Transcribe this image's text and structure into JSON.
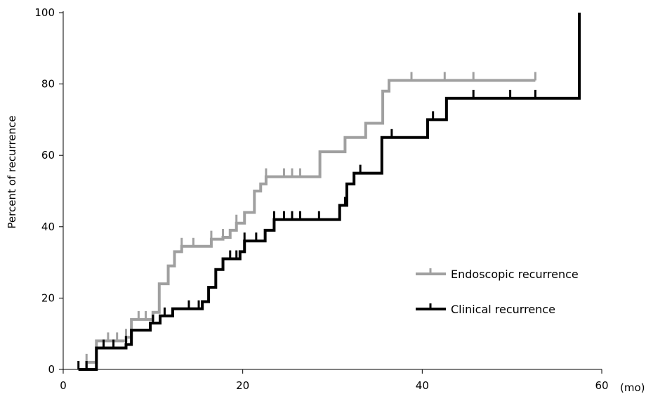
{
  "chart_data": {
    "type": "line",
    "step": true,
    "xlabel": "(mo)",
    "ylabel": "Percent of recurrence",
    "xlim": [
      0,
      60
    ],
    "ylim": [
      0,
      100
    ],
    "xticks": [
      0,
      20,
      40,
      60
    ],
    "yticks": [
      0,
      20,
      40,
      60,
      80,
      100
    ],
    "grid": false,
    "legend_position": "lower-right",
    "series": [
      {
        "name": "Endoscopic recurrence",
        "color": "#a0a0a0",
        "points": [
          [
            1.7,
            0
          ],
          [
            2.6,
            2
          ],
          [
            3.7,
            8
          ],
          [
            5,
            8
          ],
          [
            6,
            8
          ],
          [
            7,
            9
          ],
          [
            7.6,
            14
          ],
          [
            8.4,
            14
          ],
          [
            9.2,
            14
          ],
          [
            10,
            16
          ],
          [
            10.7,
            24
          ],
          [
            11.7,
            29
          ],
          [
            12.4,
            33
          ],
          [
            13.2,
            34.5
          ],
          [
            14.5,
            34.5
          ],
          [
            16.5,
            36.5
          ],
          [
            17.8,
            37
          ],
          [
            18.6,
            39
          ],
          [
            19.3,
            41
          ],
          [
            20.2,
            44
          ],
          [
            21.3,
            50
          ],
          [
            22,
            52
          ],
          [
            22.6,
            54
          ],
          [
            25.5,
            54
          ],
          [
            26,
            54
          ],
          [
            28.6,
            61
          ],
          [
            31.4,
            65
          ],
          [
            33.7,
            69
          ],
          [
            35.6,
            78
          ],
          [
            36.3,
            81
          ],
          [
            52.6,
            81
          ]
        ],
        "censored": [
          2.6,
          5,
          6,
          7,
          8.4,
          9.2,
          13.2,
          14.5,
          16.5,
          17.8,
          19.3,
          22.6,
          24.6,
          25.5,
          26.4,
          38.8,
          42.5,
          45.7,
          52.6
        ]
      },
      {
        "name": "Clinical recurrence",
        "color": "#000000",
        "points": [
          [
            1.7,
            0
          ],
          [
            3.7,
            6
          ],
          [
            7,
            7
          ],
          [
            7.6,
            11
          ],
          [
            9,
            11
          ],
          [
            9.7,
            13
          ],
          [
            10.8,
            15
          ],
          [
            12.2,
            17
          ],
          [
            14.5,
            17
          ],
          [
            15.5,
            19
          ],
          [
            16.2,
            23
          ],
          [
            17,
            28
          ],
          [
            17.8,
            31
          ],
          [
            19.7,
            33
          ],
          [
            20.2,
            36
          ],
          [
            21.7,
            36
          ],
          [
            22.5,
            39
          ],
          [
            23.5,
            42
          ],
          [
            28.5,
            42
          ],
          [
            30.8,
            46
          ],
          [
            31.6,
            52
          ],
          [
            32.4,
            55
          ],
          [
            35.5,
            65
          ],
          [
            36.8,
            65
          ],
          [
            40.6,
            70
          ],
          [
            42.7,
            76
          ],
          [
            57.5,
            76
          ],
          [
            57.5,
            100
          ]
        ],
        "censored": [
          1.7,
          2.6,
          4.5,
          5.6,
          7,
          10,
          11.3,
          14,
          15.1,
          18.6,
          19.3,
          20.2,
          21.5,
          23.5,
          24.6,
          25.5,
          26.4,
          28.5,
          31.4,
          33.1,
          36.6,
          41.2,
          45.7,
          49.8,
          52.6
        ]
      }
    ]
  }
}
